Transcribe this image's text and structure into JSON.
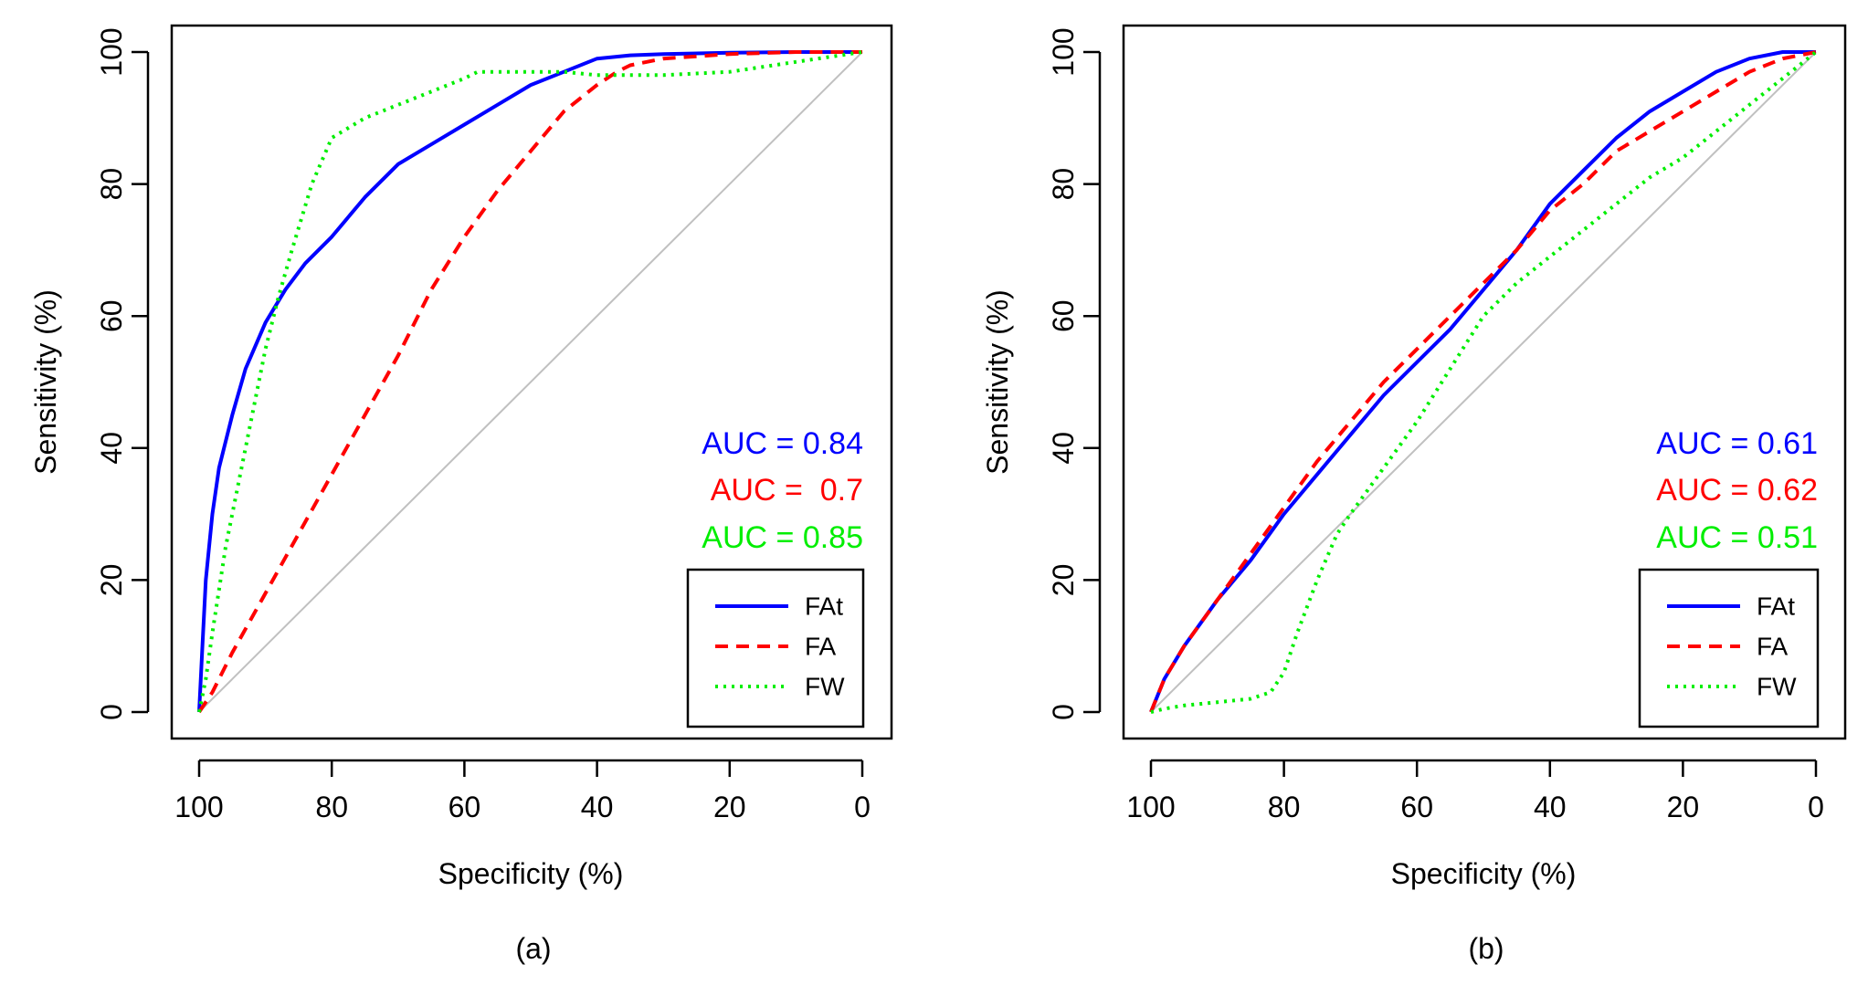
{
  "chart_data": [
    {
      "type": "line",
      "panel_label": "(a)",
      "xlabel": "Specificity (%)",
      "ylabel": "Sensitivity (%)",
      "xlim": [
        100,
        0
      ],
      "ylim": [
        0,
        100
      ],
      "x_ticks": [
        "100",
        "80",
        "60",
        "40",
        "20",
        "0"
      ],
      "y_ticks": [
        "0",
        "20",
        "40",
        "60",
        "80",
        "100"
      ],
      "diagonal_color": "#c0c0c0",
      "legend_position": "bottom-right",
      "auc_labels": [
        {
          "text": "AUC = 0.84",
          "color": "#0000ff"
        },
        {
          "text": "AUC =  0.7",
          "color": "#ff0000"
        },
        {
          "text": "AUC = 0.85",
          "color": "#00ee00"
        }
      ],
      "series": [
        {
          "name": "FAt",
          "color": "#0000ff",
          "style": "solid",
          "x": [
            100,
            99.5,
            99,
            98,
            97,
            95,
            93,
            90,
            87,
            84,
            80,
            75,
            70,
            65,
            60,
            55,
            50,
            45,
            40,
            35,
            30,
            20,
            10,
            0
          ],
          "y": [
            0,
            10,
            20,
            30,
            37,
            45,
            52,
            59,
            64,
            68,
            72,
            78,
            83,
            86,
            89,
            92,
            95,
            97,
            99,
            99.5,
            99.7,
            99.9,
            100,
            100
          ]
        },
        {
          "name": "FA",
          "color": "#ff0000",
          "style": "dashed",
          "x": [
            100,
            98,
            95,
            90,
            85,
            80,
            75,
            70,
            65,
            60,
            55,
            50,
            45,
            40,
            37,
            35,
            30,
            20,
            10,
            0
          ],
          "y": [
            0,
            3,
            9,
            18,
            27,
            36,
            45,
            54,
            64,
            72,
            79,
            85,
            91,
            95,
            97,
            98,
            99,
            99.7,
            100,
            100
          ]
        },
        {
          "name": "FW",
          "color": "#00ee00",
          "style": "dotted",
          "x": [
            100,
            99,
            98,
            96,
            93,
            90,
            88,
            86,
            83,
            80,
            75,
            70,
            65,
            60,
            58,
            55,
            50,
            45,
            40,
            35,
            30,
            20,
            10,
            0
          ],
          "y": [
            0,
            5,
            12,
            25,
            40,
            55,
            63,
            70,
            80,
            87,
            90,
            92,
            94,
            96,
            97,
            97,
            97,
            97,
            96.5,
            96.5,
            96.5,
            97,
            98.5,
            100
          ]
        }
      ]
    },
    {
      "type": "line",
      "panel_label": "(b)",
      "xlabel": "Specificity (%)",
      "ylabel": "Sensitivity (%)",
      "xlim": [
        100,
        0
      ],
      "ylim": [
        0,
        100
      ],
      "x_ticks": [
        "100",
        "80",
        "60",
        "40",
        "20",
        "0"
      ],
      "y_ticks": [
        "0",
        "20",
        "40",
        "60",
        "80",
        "100"
      ],
      "diagonal_color": "#c0c0c0",
      "legend_position": "bottom-right",
      "auc_labels": [
        {
          "text": "AUC = 0.61",
          "color": "#0000ff"
        },
        {
          "text": "AUC = 0.62",
          "color": "#ff0000"
        },
        {
          "text": "AUC = 0.51",
          "color": "#00ee00"
        }
      ],
      "series": [
        {
          "name": "FAt",
          "color": "#0000ff",
          "style": "solid",
          "x": [
            100,
            98,
            95,
            90,
            85,
            80,
            75,
            70,
            65,
            60,
            55,
            50,
            45,
            40,
            35,
            30,
            25,
            20,
            15,
            10,
            5,
            0
          ],
          "y": [
            0,
            5,
            10,
            17,
            23,
            30,
            36,
            42,
            48,
            53,
            58,
            64,
            70,
            77,
            82,
            87,
            91,
            94,
            97,
            99,
            100,
            100
          ]
        },
        {
          "name": "FA",
          "color": "#ff0000",
          "style": "dashed",
          "x": [
            100,
            98,
            95,
            90,
            85,
            80,
            75,
            70,
            65,
            60,
            55,
            50,
            45,
            40,
            35,
            30,
            25,
            20,
            15,
            10,
            5,
            0
          ],
          "y": [
            0,
            5,
            10,
            17,
            24,
            31,
            38,
            44,
            50,
            55,
            60,
            65,
            70,
            76,
            80,
            85,
            88,
            91,
            94,
            97,
            99,
            100
          ]
        },
        {
          "name": "FW",
          "color": "#00ee00",
          "style": "dotted",
          "x": [
            100,
            98,
            95,
            90,
            85,
            82,
            80,
            78,
            75,
            72,
            70,
            65,
            60,
            55,
            50,
            45,
            40,
            35,
            30,
            25,
            20,
            15,
            10,
            5,
            0
          ],
          "y": [
            0,
            0.5,
            1,
            1.5,
            2,
            3,
            6,
            12,
            20,
            27,
            30,
            37,
            44,
            52,
            60,
            65,
            69,
            73,
            77,
            81,
            84,
            88,
            92,
            96,
            100
          ]
        }
      ]
    }
  ]
}
